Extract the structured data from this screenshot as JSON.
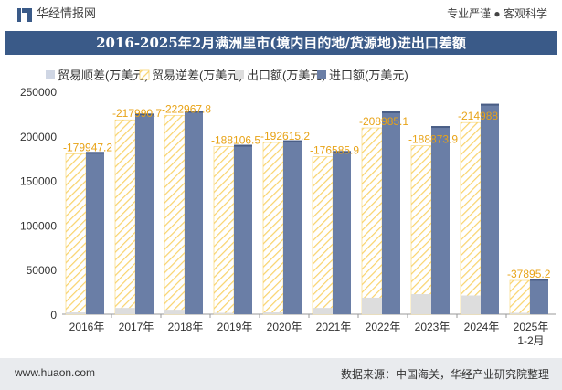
{
  "header": {
    "brand": "华经情报网",
    "tagline": "专业严谨 ● 客观科学"
  },
  "title": "2016-2025年2月满洲里市(境内目的地/货源地)进出口差额",
  "footer": {
    "url": "www.huaon.com",
    "source": "数据来源：中国海关，华经产业研究院整理"
  },
  "colors": {
    "title_bg": "#3a5a88",
    "import": "#6a7ea6",
    "export": "#dddddd",
    "deficit_stripe": "#f9d36b",
    "surplus": "#cfd6e4",
    "label": "#e8a317"
  },
  "chart_data": {
    "type": "bar",
    "categories": [
      "2016年",
      "2017年",
      "2018年",
      "2019年",
      "2020年",
      "2021年",
      "2022年",
      "2023年",
      "2024年",
      "2025年\n1-2月"
    ],
    "ylim": [
      0,
      250000
    ],
    "yticks": [
      0,
      50000,
      100000,
      150000,
      200000,
      250000
    ],
    "grid": false,
    "legend_position": "top",
    "series": [
      {
        "name": "贸易顺差(万美元)",
        "values": [
          0,
          0,
          0,
          0,
          0,
          0,
          0,
          0,
          0,
          0
        ]
      },
      {
        "name": "贸易逆差(万美元)",
        "values": [
          -179947.2,
          -217990.7,
          -222967.8,
          -188106.5,
          -192615.2,
          -176585.9,
          -208985.1,
          -188873.9,
          -214988,
          -37895.2
        ]
      },
      {
        "name": "出口额(万美元)",
        "values": [
          2000,
          7000,
          5000,
          1500,
          2000,
          7000,
          18500,
          22500,
          21000,
          1500
        ]
      },
      {
        "name": "进口额(万美元)",
        "values": [
          182000,
          225000,
          228000,
          190000,
          195000,
          183000,
          227500,
          211000,
          236000,
          39500
        ]
      }
    ],
    "data_labels": [
      "-179947.2",
      "-217990.7",
      "-222967.8",
      "-188106.5",
      "-192615.2",
      "-176585.9",
      "-208985.1",
      "-188873.9",
      "-214988",
      "-37895.2"
    ]
  }
}
